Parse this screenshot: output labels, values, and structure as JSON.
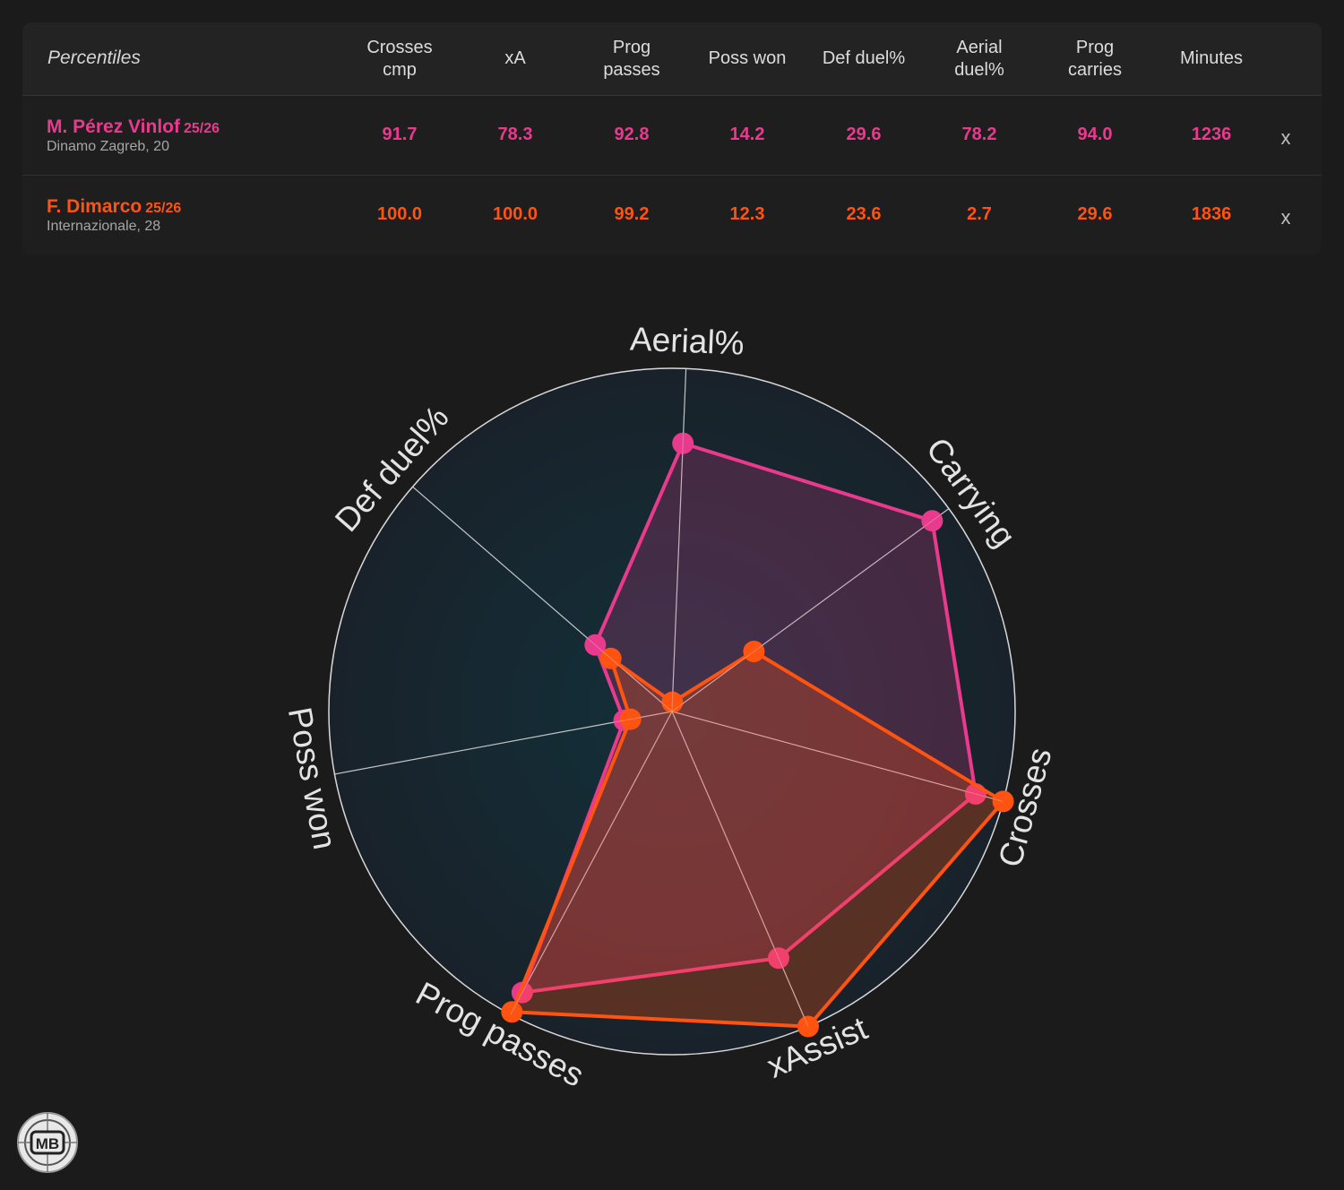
{
  "table": {
    "header_first": "Percentiles",
    "columns": [
      "Crosses\ncmp",
      "xA",
      "Prog\npasses",
      "Poss won",
      "Def duel%",
      "Aerial\nduel%",
      "Prog\ncarries",
      "Minutes"
    ],
    "remove_label": "x",
    "players": [
      {
        "name": "M. Pérez Vinlof",
        "season": "25/26",
        "team_age": "Dinamo Zagreb, 20",
        "color": "#ea3a8e",
        "values": [
          "91.7",
          "78.3",
          "92.8",
          "14.2",
          "29.6",
          "78.2",
          "94.0",
          "1236"
        ]
      },
      {
        "name": "F. Dimarco",
        "season": "25/26",
        "team_age": "Internazionale, 28",
        "color": "#ff5311",
        "values": [
          "100.0",
          "100.0",
          "99.2",
          "12.3",
          "23.6",
          "2.7",
          "29.6",
          "1836"
        ]
      }
    ]
  },
  "chart_data": {
    "type": "radar",
    "axes": [
      "Aerial%",
      "Carrying",
      "Crosses",
      "xAssist",
      "Prog passes",
      "Poss won",
      "Def duel%"
    ],
    "range": [
      0,
      100
    ],
    "series": [
      {
        "name": "M. Pérez Vinlof",
        "color": "#ea3a8e",
        "values": [
          78.2,
          94.0,
          91.7,
          78.3,
          92.8,
          14.2,
          29.6
        ]
      },
      {
        "name": "F. Dimarco",
        "color": "#ff5311",
        "values": [
          2.7,
          29.6,
          100.0,
          100.0,
          99.2,
          12.3,
          23.6
        ]
      }
    ],
    "grid": true
  },
  "logo": {
    "text": "MB"
  }
}
